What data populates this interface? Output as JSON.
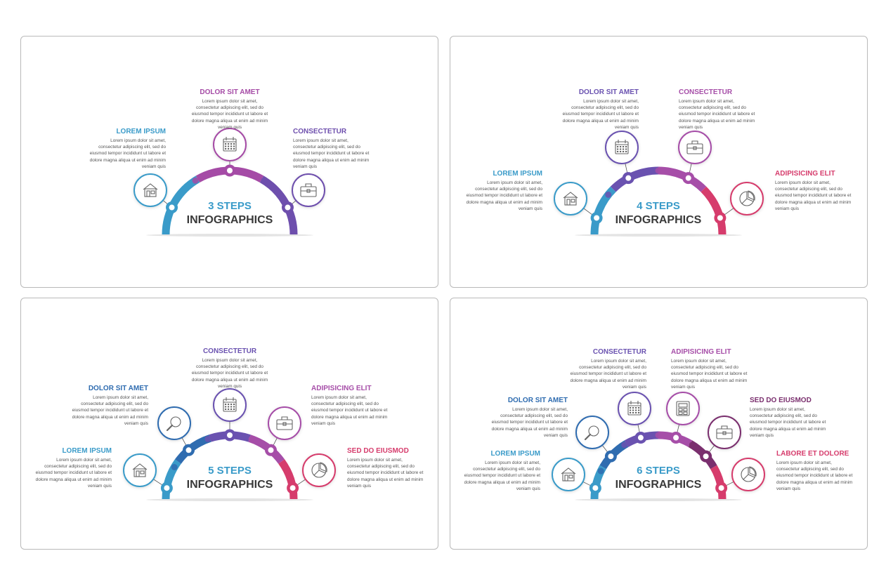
{
  "body_text": "Lorem ipsum dolor sit amet, consectetur adipiscing elit, sed do eiusmod tempor incididunt ut labore et dolore magna aliqua ut enim ad minim veniam quis",
  "panels": [
    {
      "center_number": "3 STEPS",
      "center_title": "INFOGRAPHICS",
      "steps": [
        {
          "title": "LOREM IPSUM",
          "color": "#3a9bc9",
          "icon": "house-icon"
        },
        {
          "title": "DOLOR SIT AMET",
          "color": "#a54ba6",
          "icon": "calendar-icon"
        },
        {
          "title": "CONSECTETUR",
          "color": "#6e4fad",
          "icon": "briefcase-icon"
        }
      ]
    },
    {
      "center_number": "4 STEPS",
      "center_title": "INFOGRAPHICS",
      "steps": [
        {
          "title": "LOREM IPSUM",
          "color": "#3a9bc9",
          "icon": "house-icon"
        },
        {
          "title": "DOLOR SIT AMET",
          "color": "#6a52b0",
          "icon": "calendar-icon"
        },
        {
          "title": "CONSECTETUR",
          "color": "#a64ea8",
          "icon": "briefcase-icon"
        },
        {
          "title": "ADIPISICING ELIT",
          "color": "#d63c6c",
          "icon": "pie-chart-icon"
        }
      ]
    },
    {
      "center_number": "5 STEPS",
      "center_title": "INFOGRAPHICS",
      "steps": [
        {
          "title": "LOREM IPSUM",
          "color": "#3a9bc9",
          "icon": "house-icon"
        },
        {
          "title": "DOLOR SIT AMET",
          "color": "#2f6cb0",
          "icon": "magnifier-icon"
        },
        {
          "title": "CONSECTETUR",
          "color": "#6a52b0",
          "icon": "calendar-icon"
        },
        {
          "title": "ADIPISICING ELIT",
          "color": "#a64ea8",
          "icon": "briefcase-icon"
        },
        {
          "title": "SED DO EIUSMOD",
          "color": "#d63c6c",
          "icon": "pie-chart-icon"
        }
      ]
    },
    {
      "center_number": "6 STEPS",
      "center_title": "INFOGRAPHICS",
      "steps": [
        {
          "title": "LOREM IPSUM",
          "color": "#3a9bc9",
          "icon": "house-icon"
        },
        {
          "title": "DOLOR SIT AMET",
          "color": "#2f6cb0",
          "icon": "magnifier-icon"
        },
        {
          "title": "CONSECTETUR",
          "color": "#6a52b0",
          "icon": "calendar-icon"
        },
        {
          "title": "ADIPISICING ELIT",
          "color": "#a64ea8",
          "icon": "calculator-icon"
        },
        {
          "title": "SED DO EIUSMOD",
          "color": "#7a2f6e",
          "icon": "briefcase-icon"
        },
        {
          "title": "LABORE ET DOLORE",
          "color": "#d63c6c",
          "icon": "pie-chart-icon"
        }
      ]
    }
  ]
}
